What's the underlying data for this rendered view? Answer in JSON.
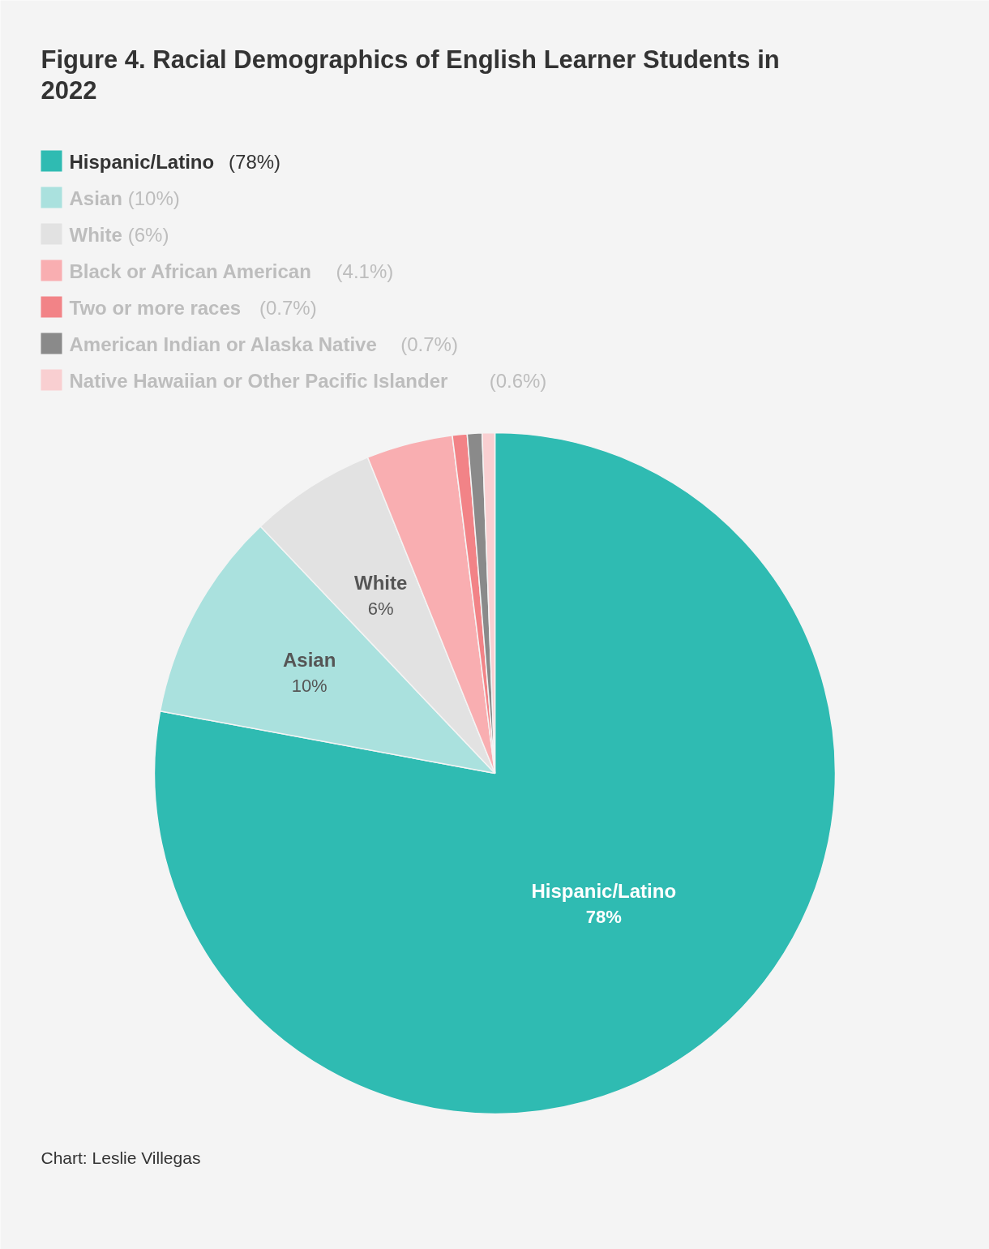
{
  "chart_data": {
    "type": "pie",
    "title": "Figure 4. Racial Demographics of English Learner Students in 2022",
    "categories": [
      "Hispanic/Latino",
      "Asian",
      "White",
      "Black or African American",
      "Two or more races",
      "American Indian or Alaska Native",
      "Native Hawaiian or Other Pacific Islander"
    ],
    "values": [
      78,
      10,
      6,
      4.1,
      0.7,
      0.7,
      0.6
    ],
    "colors": [
      "#2fbbb2",
      "#aae1de",
      "#e2e2e2",
      "#f9aeb1",
      "#f28387",
      "#8a8a8a",
      "#f9cfd1"
    ],
    "value_labels": [
      "78%",
      "10%",
      "6%",
      null,
      null,
      null,
      null
    ],
    "legend": "top left",
    "annotations": [
      "(78%)",
      "(10%)",
      "(6%)",
      "(4.1%)",
      "(0.7%)",
      "(0.7%)",
      "(0.6%)",
      "Chart: Leslie Villegas"
    ]
  }
}
